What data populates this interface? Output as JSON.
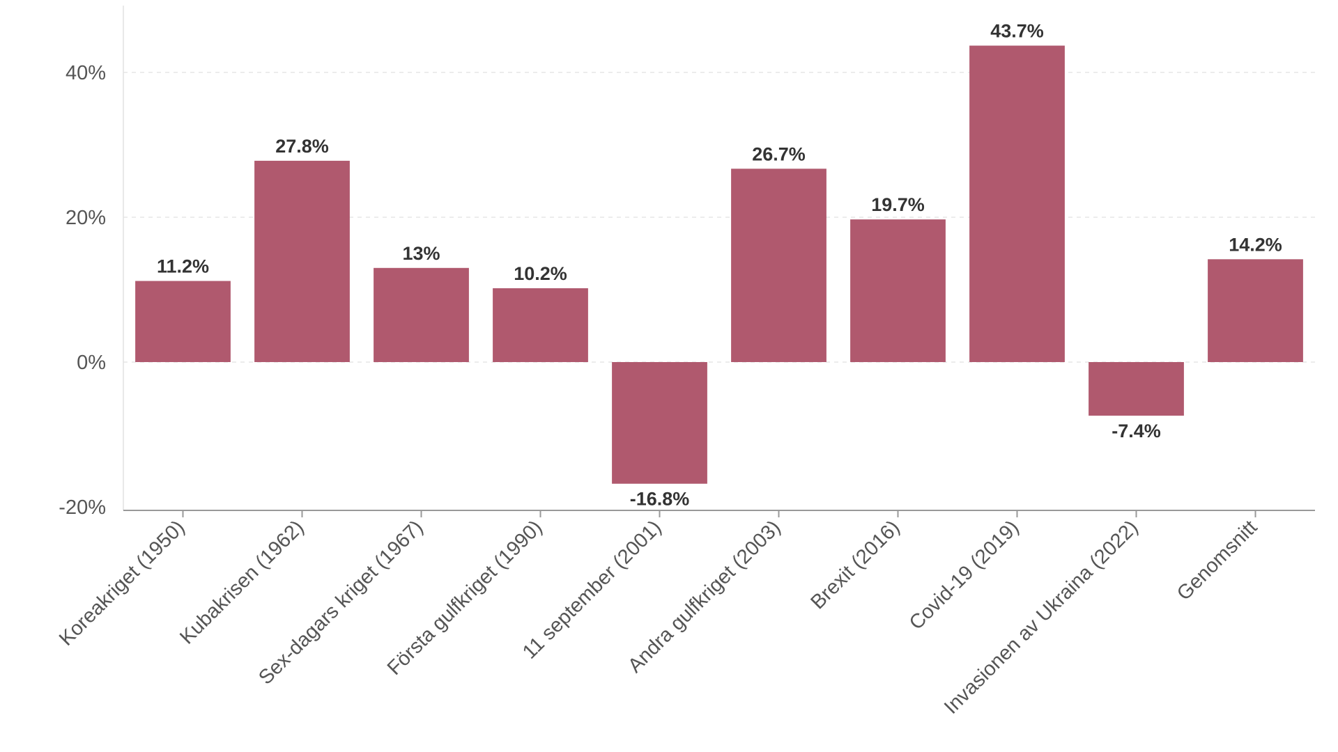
{
  "chart_data": {
    "type": "bar",
    "title": "",
    "xlabel": "",
    "ylabel": "",
    "categories": [
      "Koreakriget (1950)",
      "Kubakrisen (1962)",
      "Sex-dagars kriget (1967)",
      "Första gulfkriget (1990)",
      "11 september (2001)",
      "Andra gulfkriget (2003)",
      "Brexit (2016)",
      "Covid-19 (2019)",
      "Invasionen av Ukraina (2022)",
      "Genomsnitt"
    ],
    "values": [
      11.2,
      27.8,
      13,
      10.2,
      -16.8,
      26.7,
      19.7,
      43.7,
      -7.4,
      14.2
    ],
    "value_labels": [
      "11.2%",
      "27.8%",
      "13%",
      "10.2%",
      "-16.8%",
      "26.7%",
      "19.7%",
      "43.7%",
      "-7.4%",
      "14.2%"
    ],
    "ylim": [
      -20,
      47
    ],
    "yticks": [
      -20,
      0,
      20,
      40
    ],
    "ytick_labels": [
      "-20%",
      "0%",
      "20%",
      "40%"
    ],
    "grid": true,
    "colors": {
      "bar": "#b0596e",
      "grid": "#e6e6e6",
      "axis": "#999999"
    }
  }
}
